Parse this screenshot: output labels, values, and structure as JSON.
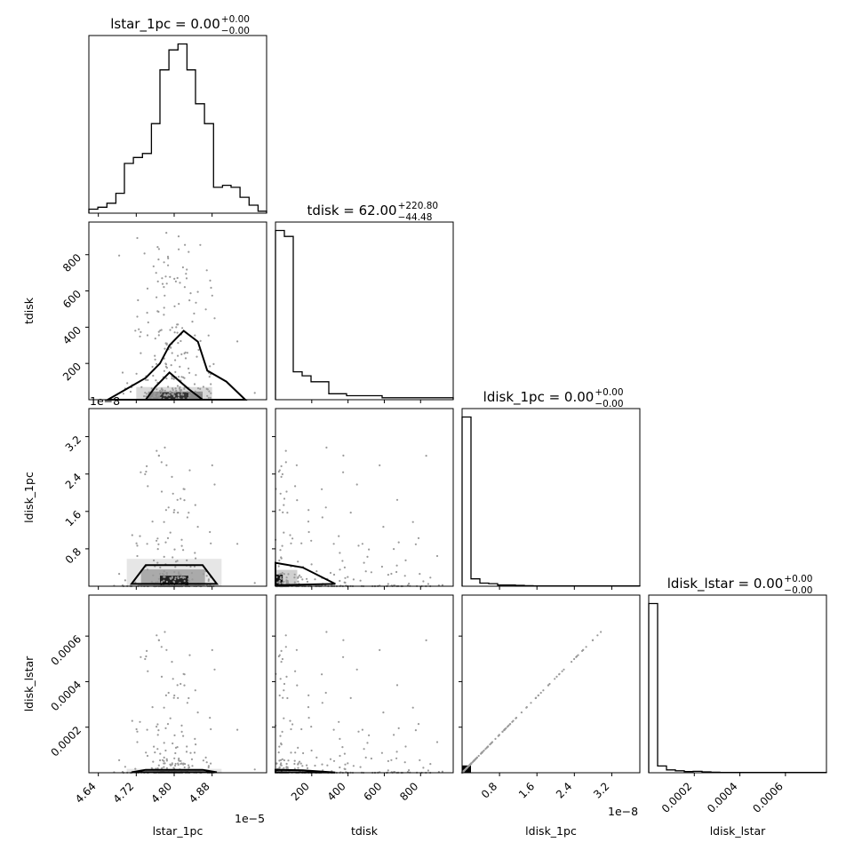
{
  "chart_data": {
    "type": "corner",
    "parameters": [
      "lstar_1pc",
      "tdisk",
      "ldisk_1pc",
      "ldisk_lstar"
    ],
    "titles": [
      {
        "name": "lstar_1pc",
        "median": "0.00",
        "plus": "+0.00",
        "minus": "−0.00"
      },
      {
        "name": "tdisk",
        "median": "62.00",
        "plus": "+220.80",
        "minus": "−44.48"
      },
      {
        "name": "ldisk_1pc",
        "median": "0.00",
        "plus": "+0.00",
        "minus": "−0.00"
      },
      {
        "name": "ldisk_lstar",
        "median": "0.00",
        "plus": "+0.00",
        "minus": "−0.00"
      }
    ],
    "axis_labels": [
      "lstar_1pc",
      "tdisk",
      "ldisk_1pc",
      "ldisk_lstar"
    ],
    "ranges": [
      [
        4.62e-05,
        4.995e-05
      ],
      [
        0,
        980
      ],
      [
        0,
        3.8e-08
      ],
      [
        0,
        0.00078
      ]
    ],
    "ticks": [
      {
        "values": [
          4.64e-05,
          4.72e-05,
          4.8e-05,
          4.88e-05
        ],
        "labels": [
          "4.64",
          "4.72",
          "4.80",
          "4.88"
        ],
        "offset": "1e−5"
      },
      {
        "values": [
          200,
          400,
          600,
          800
        ],
        "labels": [
          "200",
          "400",
          "600",
          "800"
        ],
        "offset": ""
      },
      {
        "values": [
          8e-09,
          1.6e-08,
          2.4e-08,
          3.2e-08
        ],
        "labels": [
          "0.8",
          "1.6",
          "2.4",
          "3.2"
        ],
        "offset": "1e−8"
      },
      {
        "values": [
          0.0002,
          0.0004,
          0.0006
        ],
        "labels": [
          "0.0002",
          "0.0004",
          "0.0006"
        ],
        "offset": ""
      }
    ],
    "histograms": [
      {
        "param": "lstar_1pc",
        "bin_edges": [
          4.62e-05,
          4.639e-05,
          4.658e-05,
          4.677e-05,
          4.695e-05,
          4.714e-05,
          4.733e-05,
          4.752e-05,
          4.77e-05,
          4.789e-05,
          4.808e-05,
          4.827e-05,
          4.845e-05,
          4.864e-05,
          4.883e-05,
          4.902e-05,
          4.92e-05,
          4.939e-05,
          4.958e-05,
          4.977e-05,
          4.995e-05
        ],
        "counts": [
          2,
          3,
          5,
          10,
          25,
          28,
          30,
          45,
          72,
          82,
          85,
          72,
          55,
          45,
          13,
          14,
          13,
          8,
          4,
          1
        ]
      },
      {
        "param": "tdisk",
        "bin_edges": [
          0,
          49,
          98,
          147,
          196,
          245,
          294,
          343,
          392,
          441,
          490,
          539,
          588,
          637,
          686,
          735,
          784,
          833,
          882,
          931,
          980
        ],
        "counts": [
          85,
          82,
          14,
          12,
          9,
          9,
          3,
          3,
          2,
          2,
          2,
          2,
          1,
          1,
          1,
          1,
          1,
          1,
          1,
          1
        ]
      },
      {
        "param": "ldisk_1pc",
        "bin_edges": [
          0,
          1.9e-09,
          3.8e-09,
          5.7e-09,
          7.6e-09,
          9.5e-09,
          1.14e-08,
          1.33e-08,
          1.52e-08,
          1.71e-08,
          1.9e-08,
          2.09e-08,
          2.28e-08,
          2.47e-08,
          2.66e-08,
          2.85e-08,
          3.04e-08,
          3.23e-08,
          3.42e-08,
          3.61e-08,
          3.8e-08
        ],
        "counts": [
          600,
          26,
          11,
          9,
          4,
          4,
          3,
          2,
          1,
          1,
          1,
          1,
          1,
          1,
          1,
          1,
          1,
          1,
          1,
          1
        ]
      },
      {
        "param": "ldisk_lstar",
        "bin_edges": [
          0,
          3.9e-05,
          7.8e-05,
          0.000117,
          0.000156,
          0.000195,
          0.000234,
          0.000273,
          0.000312,
          0.000351,
          0.00039,
          0.000429,
          0.000468,
          0.000507,
          0.000546,
          0.000585,
          0.000624,
          0.000663,
          0.000702,
          0.000741,
          0.00078
        ],
        "counts": [
          600,
          24,
          10,
          7,
          4,
          5,
          3,
          2,
          1,
          1,
          1,
          1,
          1,
          1,
          1,
          1,
          1,
          1,
          1,
          1
        ]
      }
    ]
  }
}
